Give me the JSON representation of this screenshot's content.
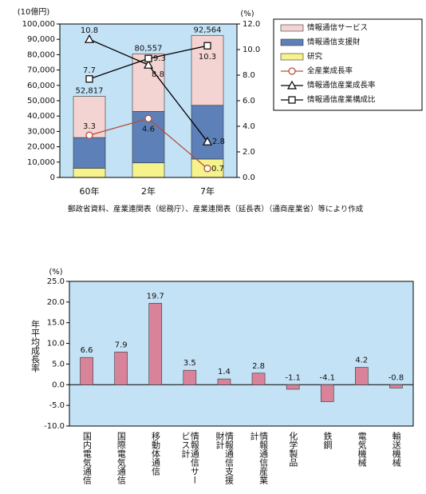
{
  "chart_data": [
    {
      "type": "combo",
      "y_label": "(10億円)",
      "y2_label": "(%)",
      "categories": [
        "60年",
        "2年",
        "7年"
      ],
      "background": "#c4e2f5",
      "series": [
        {
          "name": "情報通信サービス",
          "color": "#f4d4d2",
          "values": [
            26817,
            37557,
            45564
          ]
        },
        {
          "name": "情報通信支援財",
          "color": "#5d80b8",
          "values": [
            20000,
            33500,
            35000
          ]
        },
        {
          "name": "研究",
          "color": "#f6f28c",
          "values": [
            6000,
            9500,
            12000
          ]
        },
        {
          "name": "全産業成長率",
          "color": "#b4503c",
          "axis": "y2",
          "marker": "circle",
          "values": [
            3.3,
            4.6,
            0.7
          ]
        },
        {
          "name": "情報通信産業成長率",
          "color": "#000000",
          "axis": "y2",
          "marker": "triangle",
          "values": [
            10.8,
            8.8,
            2.8
          ]
        },
        {
          "name": "情報通信産業構成比",
          "color": "#000000",
          "axis": "y2",
          "marker": "square",
          "values": [
            7.7,
            9.3,
            10.3
          ]
        }
      ],
      "total_labels": [
        "52,817",
        "80,557",
        "92,564"
      ],
      "ylim": [
        0,
        100000
      ],
      "yticks": [
        0,
        {
          "value": 10000,
          "label": "10,000"
        },
        {
          "value": 20000,
          "label": "20,000"
        },
        {
          "value": 30000,
          "label": "30,000"
        },
        {
          "value": 40000,
          "label": "40,000"
        },
        {
          "value": 50000,
          "label": "50,000"
        },
        {
          "value": 60000,
          "label": "60,000"
        },
        {
          "value": 70000,
          "label": "70,000"
        },
        {
          "value": 80000,
          "label": "80,000"
        },
        {
          "value": 90000,
          "label": "90,000"
        },
        {
          "value": 100000,
          "label": "100,000"
        }
      ],
      "y2lim": [
        0,
        12
      ],
      "y2ticks": [
        {
          "value": 0,
          "label": "0.0"
        },
        {
          "value": 2,
          "label": "2.0"
        },
        {
          "value": 4,
          "label": "4.0"
        },
        {
          "value": 6,
          "label": "6.0"
        },
        {
          "value": 8,
          "label": "8.0"
        },
        {
          "value": 10,
          "label": "10.0"
        },
        {
          "value": 12,
          "label": "12.0"
        }
      ],
      "note": "郵政省資料、産業連関表（総務庁）、産業連関表（延長表）（通商産業省）等により作成"
    },
    {
      "type": "bar",
      "y_label": "年平均成長率",
      "y_unit": "(%)",
      "background": "#c4e2f5",
      "color": "#d9839a",
      "categories": [
        "国内電気通信",
        "国際電気通信",
        "移動体通信",
        "情報通信サービス計",
        "情報通信支援財計",
        "情報通信産業計",
        "化学製品",
        "鉄鋼",
        "電気機械",
        "輸送機械"
      ],
      "values": [
        6.6,
        7.9,
        19.7,
        3.5,
        1.4,
        2.8,
        -1.1,
        -4.1,
        4.2,
        -0.8
      ],
      "ylim": [
        -10,
        25
      ],
      "yticks": [
        {
          "value": -10,
          "label": "-10.0"
        },
        {
          "value": -5,
          "label": "-5.0"
        },
        {
          "value": 0,
          "label": "0.0"
        },
        {
          "value": 5,
          "label": "5.0"
        },
        {
          "value": 10,
          "label": "10.0"
        },
        {
          "value": 15,
          "label": "15.0"
        },
        {
          "value": 20,
          "label": "20.0"
        },
        {
          "value": 25,
          "label": "25.0"
        }
      ]
    }
  ]
}
